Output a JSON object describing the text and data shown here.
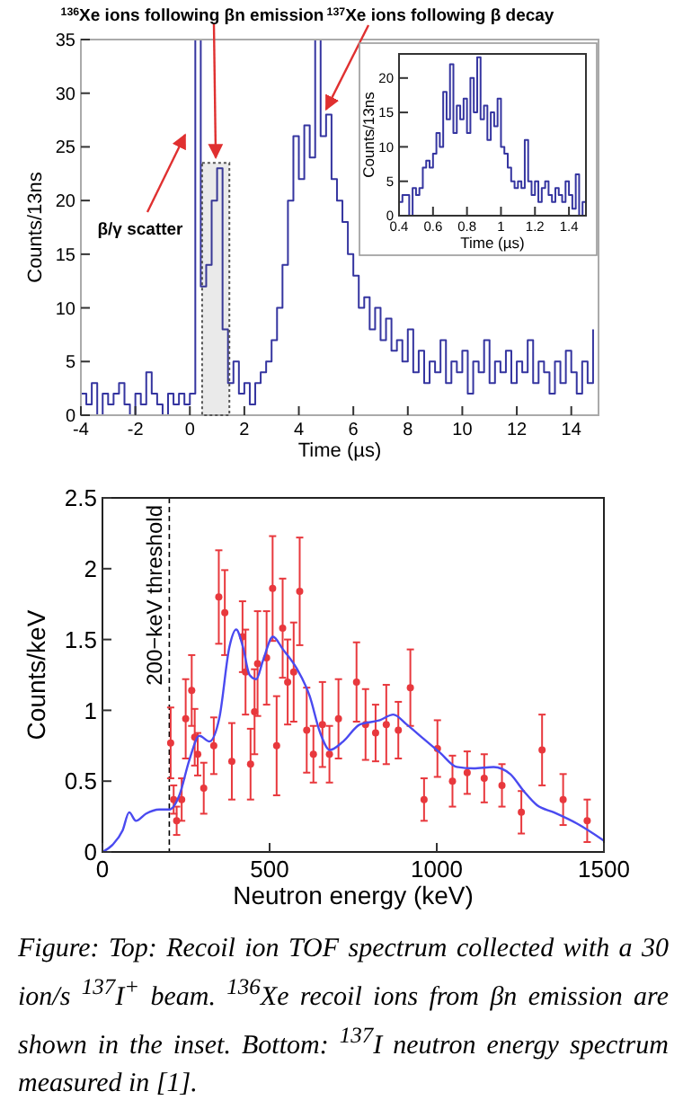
{
  "chart_data": [
    {
      "type": "step",
      "xlabel": "Time (µs)",
      "ylabel": "Counts/13ns",
      "xlim": [
        -4,
        15
      ],
      "ylim": [
        0,
        35
      ],
      "xticks": [
        -4,
        -2,
        0,
        2,
        4,
        6,
        8,
        10,
        12,
        14
      ],
      "yticks": [
        0,
        5,
        10,
        15,
        20,
        25,
        30,
        35
      ],
      "series": [
        {
          "color": "#3535a0",
          "x": [
            -4,
            -3.8,
            -3.6,
            -3.4,
            -3.2,
            -3,
            -2.8,
            -2.6,
            -2.4,
            -2.2,
            -2,
            -1.8,
            -1.6,
            -1.4,
            -1.2,
            -1,
            -0.8,
            -0.6,
            -0.4,
            -0.2,
            0,
            0.2,
            0.4,
            0.6,
            0.8,
            1,
            1.2,
            1.4,
            1.6,
            1.8,
            2,
            2.2,
            2.4,
            2.6,
            2.8,
            3,
            3.2,
            3.4,
            3.6,
            3.8,
            4,
            4.2,
            4.4,
            4.6,
            4.8,
            5,
            5.2,
            5.4,
            5.6,
            5.8,
            6,
            6.2,
            6.4,
            6.6,
            6.8,
            7,
            7.2,
            7.4,
            7.6,
            7.8,
            8,
            8.2,
            8.4,
            8.6,
            8.8,
            9,
            9.2,
            9.4,
            9.6,
            9.8,
            10,
            10.2,
            10.4,
            10.6,
            10.8,
            11,
            11.2,
            11.4,
            11.6,
            11.8,
            12,
            12.2,
            12.4,
            12.6,
            12.8,
            13,
            13.2,
            13.4,
            13.6,
            13.8,
            14,
            14.2,
            14.4,
            14.6,
            14.8
          ],
          "values": [
            2,
            1,
            3,
            0,
            2,
            1,
            2,
            3,
            1,
            0,
            2,
            1,
            4,
            2,
            1,
            0,
            2,
            1,
            2,
            1,
            2,
            35,
            12,
            14,
            20,
            23,
            8,
            3,
            5,
            2,
            3,
            1,
            3,
            4,
            5,
            7,
            10,
            14,
            20,
            26,
            22,
            27,
            24,
            35,
            26,
            28,
            22,
            20,
            18,
            15,
            13,
            10,
            11,
            8,
            10,
            7,
            9,
            6,
            7,
            5,
            8,
            4,
            6,
            3,
            5,
            4,
            7,
            3,
            5,
            4,
            6,
            2,
            5,
            4,
            7,
            3,
            5,
            4,
            6,
            3,
            5,
            4,
            7,
            3,
            5,
            4,
            2,
            5,
            3,
            6,
            4,
            2,
            5,
            3,
            8
          ]
        }
      ],
      "annotations": [
        {
          "text": "$^{136}$Xe ions following βn emission",
          "x": 0.95,
          "y": 24
        },
        {
          "text": "$^{137}$Xe ions following β decay",
          "x": 5,
          "y": 28.5
        },
        "β/γ scatter"
      ],
      "bands": [
        {
          "axis": "x",
          "from": 0.45,
          "to": 1.45,
          "color": "#555555"
        }
      ]
    },
    {
      "type": "step",
      "xlabel": "Time (µs)",
      "ylabel": "Counts/13ns",
      "xlim": [
        0.4,
        1.5
      ],
      "ylim": [
        0,
        23.5
      ],
      "xticks": [
        0.4,
        0.6,
        0.8,
        1,
        1.2,
        1.4
      ],
      "yticks": [
        0,
        5,
        10,
        15,
        20
      ],
      "series": [
        {
          "color": "#3535a0",
          "x": [
            0.4,
            0.42,
            0.44,
            0.46,
            0.48,
            0.5,
            0.52,
            0.54,
            0.56,
            0.58,
            0.6,
            0.62,
            0.64,
            0.66,
            0.68,
            0.7,
            0.72,
            0.74,
            0.76,
            0.78,
            0.8,
            0.82,
            0.84,
            0.86,
            0.88,
            0.9,
            0.92,
            0.94,
            0.96,
            0.98,
            1,
            1.02,
            1.04,
            1.06,
            1.08,
            1.1,
            1.12,
            1.14,
            1.16,
            1.18,
            1.2,
            1.22,
            1.24,
            1.26,
            1.28,
            1.3,
            1.32,
            1.34,
            1.36,
            1.38,
            1.4,
            1.42,
            1.44,
            1.46,
            1.48,
            1.5
          ],
          "values": [
            2,
            3,
            3,
            0,
            4,
            3,
            4,
            7,
            8,
            7,
            9,
            12,
            10,
            18,
            14,
            22,
            12,
            16,
            14,
            17,
            12,
            20,
            15,
            23,
            14,
            16,
            11,
            15,
            13,
            17,
            10,
            9,
            7,
            5,
            4,
            5,
            4,
            11,
            5,
            3,
            5,
            2,
            4,
            5,
            3,
            2,
            4,
            3,
            2,
            5,
            3,
            1,
            6,
            0,
            2,
            2
          ]
        }
      ]
    },
    {
      "type": "scatter",
      "xlabel": "Neutron energy (keV)",
      "ylabel": "Counts/keV",
      "xlim": [
        0,
        1500
      ],
      "ylim": [
        0,
        2.5
      ],
      "xticks": [
        0,
        500,
        1000,
        1500
      ],
      "yticks": [
        0,
        0.5,
        1,
        1.5,
        2,
        2.5
      ],
      "series": [
        {
          "color": "#e8383d",
          "marker": "circle",
          "x": [
            204,
            213,
            222,
            237,
            249,
            267,
            276,
            285,
            303,
            333,
            348,
            366,
            387,
            419,
            428,
            443,
            455,
            464,
            491,
            509,
            521,
            539,
            554,
            572,
            590,
            611,
            631,
            658,
            679,
            706,
            760,
            787,
            817,
            849,
            885,
            921,
            962,
            1002,
            1047,
            1091,
            1142,
            1195,
            1253,
            1315,
            1378,
            1450
          ],
          "values": [
            0.77,
            0.37,
            0.22,
            0.37,
            0.94,
            1.14,
            0.81,
            0.69,
            0.45,
            0.75,
            1.8,
            1.69,
            0.64,
            1.52,
            1.27,
            0.62,
            0.99,
            1.33,
            1.37,
            1.86,
            0.75,
            1.58,
            1.2,
            1.27,
            1.84,
            0.86,
            0.69,
            0.9,
            0.69,
            0.94,
            1.2,
            0.9,
            0.84,
            0.9,
            0.86,
            1.16,
            0.37,
            0.73,
            0.5,
            0.56,
            0.52,
            0.47,
            0.28,
            0.72,
            0.37,
            0.22
          ],
          "errors": [
            0.25,
            0.1,
            0.1,
            0.15,
            0.28,
            0.25,
            0.2,
            0.15,
            0.18,
            0.2,
            0.33,
            0.3,
            0.27,
            0.25,
            0.3,
            0.25,
            0.3,
            0.37,
            0.33,
            0.37,
            0.35,
            0.35,
            0.3,
            0.35,
            0.38,
            0.3,
            0.2,
            0.3,
            0.2,
            0.28,
            0.28,
            0.25,
            0.2,
            0.28,
            0.2,
            0.27,
            0.15,
            0.2,
            0.18,
            0.15,
            0.17,
            0.15,
            0.15,
            0.25,
            0.18,
            0.15
          ]
        },
        {
          "type": "line",
          "color": "#4a4af0",
          "x": [
            0,
            30,
            60,
            80,
            100,
            130,
            170,
            200,
            230,
            260,
            290,
            320,
            350,
            380,
            400,
            420,
            440,
            460,
            480,
            510,
            540,
            580,
            620,
            650,
            680,
            720,
            770,
            830,
            870,
            910,
            960,
            1010,
            1060,
            1110,
            1170,
            1220,
            1260,
            1300,
            1350,
            1420,
            1500
          ],
          "values": [
            0,
            0.05,
            0.15,
            0.28,
            0.22,
            0.27,
            0.3,
            0.3,
            0.4,
            0.65,
            0.82,
            0.78,
            0.95,
            1.45,
            1.57,
            1.45,
            1.25,
            1.22,
            1.35,
            1.52,
            1.43,
            1.3,
            1.1,
            0.85,
            0.72,
            0.78,
            0.9,
            0.93,
            0.97,
            0.9,
            0.8,
            0.7,
            0.6,
            0.59,
            0.6,
            0.55,
            0.43,
            0.33,
            0.28,
            0.2,
            0.08
          ]
        }
      ],
      "ref_lines": [
        {
          "axis": "x",
          "value": 200,
          "label": "200−keV threshold",
          "color": "#000000",
          "line_style": "dashed"
        }
      ],
      "annotations": [
        "Figure: Top: Recoil ion TOF spectrum collected with a 30 ion/s $^{137}$I$^{+}$ beam.  $^{136}$Xe recoil ions from βn emission are shown in the inset. Bottom: $^{137}$I neutron energy spectrum measured in [1]."
      ]
    }
  ]
}
